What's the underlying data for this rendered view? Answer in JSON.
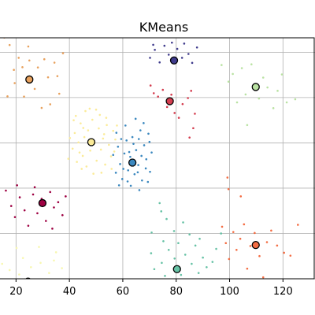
{
  "chart_data": {
    "type": "scatter",
    "title": "KMeans",
    "xlabel": "",
    "ylabel": "",
    "xlim": [
      14,
      132
    ],
    "ylim": [
      0,
      100
    ],
    "xticks": [
      20,
      40,
      60,
      80,
      100,
      120
    ],
    "xtick_labels": [
      "20",
      "40",
      "60",
      "80",
      "100",
      "120"
    ],
    "ygrid": [
      0,
      18.8,
      37.6,
      56.4,
      75.2,
      94.0
    ],
    "grid": true,
    "clusters": [
      {
        "color": "#e8a15d",
        "center": [
          25.0,
          82.7
        ],
        "points": [
          [
            15.6,
            100.1
          ],
          [
            17.6,
            97.0
          ],
          [
            19.2,
            86.7
          ],
          [
            21.0,
            91.7
          ],
          [
            23.0,
            75.6
          ],
          [
            24.6,
            96.4
          ],
          [
            25.0,
            90.6
          ],
          [
            27.0,
            78.8
          ],
          [
            28.2,
            87.7
          ],
          [
            29.6,
            70.9
          ],
          [
            30.6,
            91.1
          ],
          [
            32.0,
            83.6
          ],
          [
            32.8,
            72.4
          ],
          [
            34.4,
            89.7
          ],
          [
            36.2,
            76.8
          ],
          [
            37.6,
            93.6
          ],
          [
            16.8,
            75.7
          ],
          [
            19.5,
            81.2
          ],
          [
            22.4,
            87.8
          ],
          [
            35.5,
            84.1
          ]
        ]
      },
      {
        "color": "#3f3b8c",
        "center": [
          79.2,
          90.6
        ],
        "points": [
          [
            70.2,
            91.7
          ],
          [
            72.0,
            95.0
          ],
          [
            73.8,
            89.8
          ],
          [
            75.6,
            96.7
          ],
          [
            77.2,
            93.0
          ],
          [
            78.4,
            98.0
          ],
          [
            80.4,
            95.4
          ],
          [
            82.2,
            91.7
          ],
          [
            83.0,
            97.6
          ],
          [
            84.6,
            93.3
          ],
          [
            86.0,
            89.6
          ],
          [
            87.8,
            96.0
          ],
          [
            71.4,
            97.1
          ],
          [
            81.6,
            100.8
          ]
        ]
      },
      {
        "color": "#d43d4f",
        "center": [
          77.6,
          73.7
        ],
        "points": [
          [
            70.4,
            80.2
          ],
          [
            71.6,
            77.0
          ],
          [
            73.2,
            75.6
          ],
          [
            75.0,
            78.4
          ],
          [
            76.6,
            71.3
          ],
          [
            78.2,
            76.4
          ],
          [
            79.4,
            68.8
          ],
          [
            81.0,
            66.8
          ],
          [
            82.4,
            72.5
          ],
          [
            84.4,
            75.0
          ],
          [
            85.6,
            78.0
          ],
          [
            86.4,
            62.5
          ],
          [
            87.0,
            68.5
          ],
          [
            85.0,
            58.6
          ]
        ]
      },
      {
        "color": "#b9e2a2",
        "center": [
          109.8,
          79.6
        ],
        "points": [
          [
            97.0,
            88.7
          ],
          [
            99.6,
            81.8
          ],
          [
            101.2,
            85.0
          ],
          [
            102.8,
            73.2
          ],
          [
            104.6,
            87.4
          ],
          [
            106.0,
            76.5
          ],
          [
            108.2,
            89.0
          ],
          [
            111.0,
            74.8
          ],
          [
            112.6,
            83.5
          ],
          [
            114.2,
            79.4
          ],
          [
            116.4,
            70.8
          ],
          [
            118.0,
            78.0
          ],
          [
            119.6,
            84.8
          ],
          [
            121.4,
            73.2
          ],
          [
            124.6,
            74.5
          ],
          [
            106.6,
            63.8
          ]
        ]
      },
      {
        "color": "#fbeb98",
        "center": [
          48.2,
          56.7
        ],
        "points": [
          [
            40.2,
            58.4
          ],
          [
            41.2,
            54.0
          ],
          [
            42.0,
            60.5
          ],
          [
            42.8,
            48.5
          ],
          [
            43.4,
            56.6
          ],
          [
            44.2,
            64.5
          ],
          [
            45.0,
            51.0
          ],
          [
            45.6,
            58.8
          ],
          [
            46.4,
            46.6
          ],
          [
            47.0,
            61.6
          ],
          [
            47.8,
            53.2
          ],
          [
            48.6,
            66.0
          ],
          [
            49.4,
            56.4
          ],
          [
            50.2,
            49.0
          ],
          [
            51.0,
            62.4
          ],
          [
            51.8,
            53.6
          ],
          [
            52.6,
            58.2
          ],
          [
            53.4,
            47.4
          ],
          [
            54.0,
            63.8
          ],
          [
            54.8,
            55.6
          ],
          [
            55.6,
            50.8
          ],
          [
            56.4,
            61.4
          ],
          [
            57.2,
            57.8
          ],
          [
            41.6,
            65.8
          ],
          [
            46.0,
            69.6
          ],
          [
            50.0,
            70.2
          ],
          [
            53.8,
            66.8
          ],
          [
            44.6,
            45.6
          ],
          [
            49.0,
            43.6
          ],
          [
            55.8,
            45.6
          ],
          [
            57.8,
            63.6
          ],
          [
            39.6,
            49.8
          ],
          [
            42.4,
            67.6
          ],
          [
            52.0,
            44.0
          ],
          [
            47.6,
            70.6
          ],
          [
            56.8,
            52.8
          ],
          [
            43.8,
            52.4
          ],
          [
            51.4,
            68.0
          ],
          [
            45.2,
            62.6
          ],
          [
            53.0,
            60.0
          ]
        ]
      },
      {
        "color": "#3b88bf",
        "center": [
          63.6,
          48.2
        ],
        "points": [
          [
            56.4,
            51.4
          ],
          [
            57.4,
            44.0
          ],
          [
            58.2,
            54.8
          ],
          [
            59.0,
            47.6
          ],
          [
            59.8,
            41.4
          ],
          [
            60.6,
            52.0
          ],
          [
            61.4,
            57.4
          ],
          [
            62.0,
            45.0
          ],
          [
            62.8,
            50.6
          ],
          [
            63.6,
            58.8
          ],
          [
            64.4,
            43.4
          ],
          [
            65.0,
            53.4
          ],
          [
            65.8,
            47.2
          ],
          [
            66.6,
            61.6
          ],
          [
            67.2,
            40.8
          ],
          [
            68.0,
            55.4
          ],
          [
            68.8,
            49.6
          ],
          [
            69.6,
            60.2
          ],
          [
            70.2,
            44.4
          ],
          [
            70.8,
            52.4
          ],
          [
            61.0,
            63.6
          ],
          [
            64.8,
            66.4
          ],
          [
            67.8,
            64.6
          ],
          [
            58.6,
            38.8
          ],
          [
            63.0,
            38.6
          ],
          [
            66.2,
            36.8
          ],
          [
            69.4,
            40.2
          ],
          [
            57.6,
            60.6
          ],
          [
            60.2,
            45.6
          ],
          [
            62.4,
            52.6
          ],
          [
            64.0,
            56.0
          ],
          [
            65.6,
            44.2
          ],
          [
            67.0,
            51.0
          ],
          [
            68.6,
            45.8
          ],
          [
            59.4,
            58.0
          ],
          [
            66.0,
            58.0
          ],
          [
            61.8,
            40.4
          ],
          [
            70.0,
            56.8
          ]
        ]
      },
      {
        "color": "#9e0142",
        "center": [
          29.9,
          31.4
        ],
        "points": [
          [
            16.2,
            36.6
          ],
          [
            18.2,
            30.2
          ],
          [
            19.6,
            25.6
          ],
          [
            21.4,
            33.8
          ],
          [
            23.2,
            28.4
          ],
          [
            24.6,
            22.0
          ],
          [
            26.4,
            35.0
          ],
          [
            28.0,
            27.2
          ],
          [
            29.6,
            33.2
          ],
          [
            31.2,
            24.0
          ],
          [
            32.8,
            36.0
          ],
          [
            34.2,
            29.6
          ],
          [
            35.8,
            31.8
          ],
          [
            37.4,
            26.4
          ],
          [
            38.6,
            34.2
          ],
          [
            20.4,
            38.8
          ],
          [
            27.0,
            38.0
          ],
          [
            33.6,
            20.8
          ]
        ]
      },
      {
        "color": "#f46d43",
        "center": [
          109.8,
          14.0
        ],
        "points": [
          [
            97.2,
            21.6
          ],
          [
            98.6,
            14.8
          ],
          [
            99.8,
            8.2
          ],
          [
            101.4,
            19.4
          ],
          [
            102.6,
            12.0
          ],
          [
            104.0,
            16.6
          ],
          [
            105.4,
            22.6
          ],
          [
            106.6,
            4.2
          ],
          [
            107.8,
            13.6
          ],
          [
            109.4,
            19.0
          ],
          [
            111.2,
            9.4
          ],
          [
            112.6,
            0.6
          ],
          [
            114.0,
            15.2
          ],
          [
            115.6,
            20.0
          ],
          [
            117.8,
            13.8
          ],
          [
            120.4,
            10.8
          ],
          [
            122.8,
            9.6
          ],
          [
            125.6,
            22.4
          ],
          [
            99.2,
            42.0
          ],
          [
            104.2,
            34.2
          ],
          [
            99.6,
            37.2
          ]
        ]
      },
      {
        "color": "#66c2a5",
        "center": [
          80.3,
          4.0
        ],
        "points": [
          [
            70.6,
            10.6
          ],
          [
            71.8,
            4.0
          ],
          [
            73.0,
            -1.4
          ],
          [
            74.6,
            6.6
          ],
          [
            75.8,
            1.2
          ],
          [
            77.2,
            12.0
          ],
          [
            78.2,
            -3.6
          ],
          [
            79.4,
            8.4
          ],
          [
            80.8,
            14.8
          ],
          [
            81.8,
            1.6
          ],
          [
            83.4,
            10.0
          ],
          [
            84.6,
            -0.4
          ],
          [
            85.8,
            6.2
          ],
          [
            87.2,
            13.8
          ],
          [
            88.4,
            2.4
          ],
          [
            90.0,
            8.8
          ],
          [
            91.4,
            4.8
          ],
          [
            93.6,
            7.0
          ],
          [
            75.2,
            15.6
          ],
          [
            73.8,
            31.4
          ],
          [
            74.4,
            28.0
          ],
          [
            82.6,
            23.4
          ],
          [
            79.2,
            19.8
          ],
          [
            85.0,
            18.4
          ],
          [
            88.8,
            16.6
          ],
          [
            76.4,
            24.8
          ],
          [
            70.8,
            19.2
          ],
          [
            96.8,
            18.8
          ],
          [
            95.0,
            12.4
          ]
        ]
      },
      {
        "color": "#f7f7b0",
        "center": [
          24.5,
          -1.2
        ],
        "points": [
          [
            14.8,
            6.2
          ],
          [
            16.4,
            -1.6
          ],
          [
            17.6,
            3.6
          ],
          [
            19.4,
            -4.2
          ],
          [
            21.2,
            1.8
          ],
          [
            22.6,
            8.6
          ],
          [
            24.2,
            -2.6
          ],
          [
            25.6,
            4.8
          ],
          [
            27.6,
            -0.8
          ],
          [
            29.2,
            6.6
          ],
          [
            30.8,
            -3.8
          ],
          [
            32.4,
            2.4
          ],
          [
            34.2,
            7.6
          ],
          [
            35.4,
            -1.2
          ],
          [
            37.2,
            4.4
          ],
          [
            38.8,
            -3.2
          ],
          [
            20.2,
            12.8
          ],
          [
            28.6,
            13.2
          ],
          [
            35.0,
            11.0
          ]
        ]
      }
    ]
  }
}
